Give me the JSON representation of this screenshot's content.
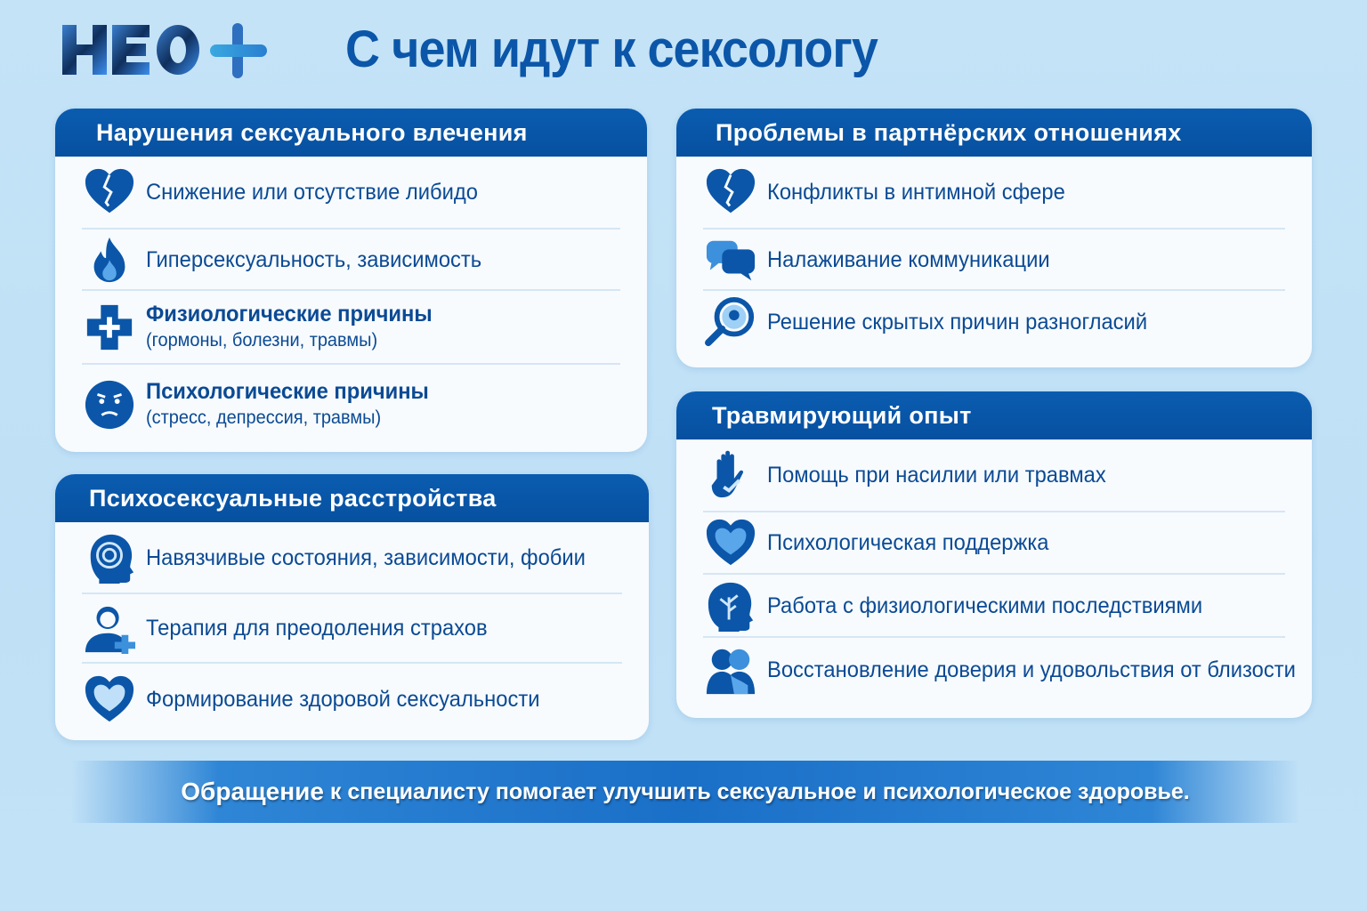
{
  "brand": {
    "logo_text": "НЕО+",
    "colors": {
      "primary": "#0a5cb0",
      "accent": "#2f9fe0",
      "background": "#c4e3f7"
    }
  },
  "title": "С чем идут к сексологу",
  "sections": [
    {
      "title": "Нарушения сексуального влечения",
      "items": [
        {
          "icon": "broken-heart-icon",
          "text": "Снижение или отсутствие либидо"
        },
        {
          "icon": "flame-icon",
          "text": "Гиперсексуальность, зависимость"
        },
        {
          "icon": "medical-cross-icon",
          "text": "Физиологические причины",
          "sub": "(гормоны, болезни, травмы)"
        },
        {
          "icon": "sad-face-icon",
          "text": "Психологические причины",
          "sub": "(стресс, депрессия, травмы)"
        }
      ]
    },
    {
      "title": "Психосексуальные расстройства",
      "items": [
        {
          "icon": "spiral-head-icon",
          "text": "Навязчивые состояния, зависимости, фобии"
        },
        {
          "icon": "person-plus-icon",
          "text": "Терапия для преодоления страхов"
        },
        {
          "icon": "heart-icon",
          "text": "Формирование здоровой сексуальности"
        }
      ]
    },
    {
      "title": "Проблемы в партнёрских отношениях",
      "items": [
        {
          "icon": "broken-heart-icon",
          "text": "Конфликты в интимной сфере"
        },
        {
          "icon": "chat-bubbles-icon",
          "text": "Налаживание коммуникации"
        },
        {
          "icon": "magnifier-head-icon",
          "text": "Решение скрытых причин разногласий"
        }
      ]
    },
    {
      "title": "Травмирующий опыт",
      "items": [
        {
          "icon": "hand-icon",
          "text": "Помощь при насилии или травмах"
        },
        {
          "icon": "heart-icon",
          "text": "Психологическая поддержка"
        },
        {
          "icon": "brain-tree-icon",
          "text": "Работа с физиологическими последствиями"
        },
        {
          "icon": "embrace-icon",
          "text": "Восстановление доверия и удовольствия от близости"
        }
      ]
    }
  ],
  "footer": {
    "lead": "Обращение",
    "text": "к специалисту помогает улучшить сексуальное и психологическое здоровье."
  }
}
